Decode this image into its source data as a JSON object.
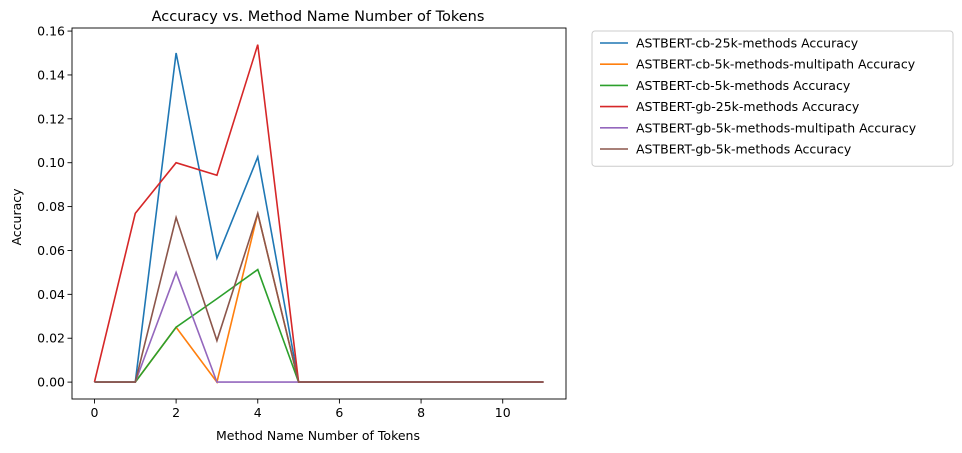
{
  "chart_data": {
    "type": "line",
    "title": "Accuracy vs. Method Name Number of Tokens",
    "xlabel": "Method Name Number of Tokens",
    "ylabel": "Accuracy",
    "xlim": [
      -0.55,
      11.55
    ],
    "ylim": [
      -0.0077,
      0.1614
    ],
    "xticks": [
      0,
      2,
      4,
      6,
      8,
      10
    ],
    "yticks": [
      0.0,
      0.02,
      0.04,
      0.06,
      0.08,
      0.1,
      0.12,
      0.14,
      0.16
    ],
    "xtick_labels": [
      "0",
      "2",
      "4",
      "6",
      "8",
      "10"
    ],
    "ytick_labels": [
      "0.00",
      "0.02",
      "0.04",
      "0.06",
      "0.08",
      "0.10",
      "0.12",
      "0.14",
      "0.16"
    ],
    "grid": false,
    "legend_position": "outside-top-right",
    "x": [
      0,
      1,
      2,
      3,
      4,
      5,
      6,
      7,
      8,
      9,
      10,
      11
    ],
    "series": [
      {
        "name": "ASTBERT-cb-25k-methods Accuracy",
        "color": "#1f77b4",
        "values": [
          0,
          0,
          0.15,
          0.0565,
          0.1026,
          0,
          0,
          0,
          0,
          0,
          0,
          0
        ]
      },
      {
        "name": "ASTBERT-cb-5k-methods-multipath Accuracy",
        "color": "#ff7f0e",
        "values": [
          0,
          0,
          0.025,
          0,
          0.0769,
          0,
          0,
          0,
          0,
          0,
          0,
          0
        ]
      },
      {
        "name": "ASTBERT-cb-5k-methods Accuracy",
        "color": "#2ca02c",
        "values": [
          0,
          0,
          0.025,
          0.038,
          0.0513,
          0,
          0,
          0,
          0,
          0,
          0,
          0
        ]
      },
      {
        "name": "ASTBERT-gb-25k-methods Accuracy",
        "color": "#d62728",
        "values": [
          0,
          0.0769,
          0.1,
          0.0943,
          0.1538,
          0,
          0,
          0,
          0,
          0,
          0,
          0
        ]
      },
      {
        "name": "ASTBERT-gb-5k-methods-multipath Accuracy",
        "color": "#9467bd",
        "values": [
          0,
          0,
          0.05,
          0,
          0,
          0,
          0,
          0,
          0,
          0,
          0,
          0
        ]
      },
      {
        "name": "ASTBERT-gb-5k-methods Accuracy",
        "color": "#8c564b",
        "values": [
          0,
          0,
          0.075,
          0.0189,
          0.0769,
          0,
          0,
          0,
          0,
          0,
          0,
          0
        ]
      }
    ]
  }
}
